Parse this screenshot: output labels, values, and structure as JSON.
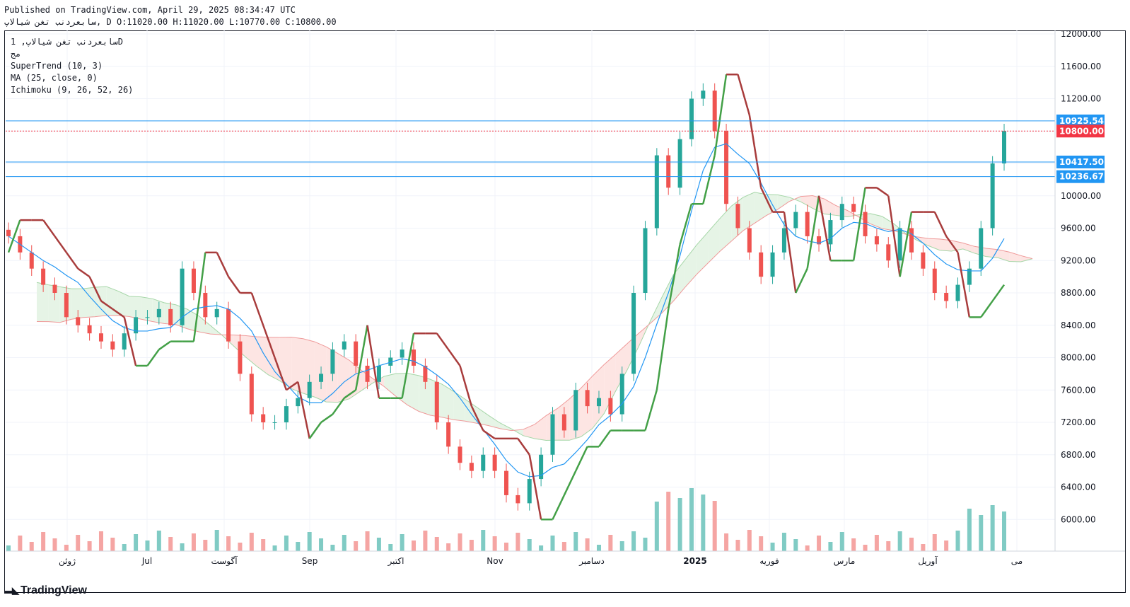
{
  "header": {
    "published_line": "Published on TradingView.com, April 29, 2025 08:34:47 UTC",
    "symbol_name": "سابعردنب تغن شیالاپ",
    "ohlc_text": "D O:11020.00 H:11020.00 L:10770.00 C:10800.00"
  },
  "legend": {
    "line1": "سابعردنب تغن شیالاپ, 1D",
    "line2": "مج",
    "indicators": [
      "SuperTrend (10, 3)",
      "MA (25, close, 0)",
      "Ichimoku (9, 26, 52, 26)"
    ]
  },
  "brand": {
    "name": "TradingView"
  },
  "colors": {
    "up": "#26a69a",
    "down": "#ef5350",
    "ma": "#2196f3",
    "supertrend_up": "#43a047",
    "supertrend_down": "#a83c3c",
    "hline": "#2196f3",
    "price": "#f23645",
    "cloud_green": "#e6f4e6",
    "cloud_red": "#fde5e3"
  },
  "chart_data": {
    "type": "line",
    "title": "",
    "y_axis": {
      "ticks": [
        12000,
        11600,
        11200,
        10800,
        10400,
        10000,
        9600,
        9200,
        8800,
        8400,
        8000,
        7600,
        7200,
        6800,
        6400,
        6000
      ],
      "range": [
        5600,
        12000
      ]
    },
    "x_axis": {
      "labels": [
        "ژوئن",
        "Jul",
        "آگوست",
        "Sep",
        "اکتبر",
        "Nov",
        "دسامبر",
        "2025",
        "فوریه",
        "مارس",
        "آوریل",
        "می"
      ]
    },
    "horizontal_levels": [
      {
        "value": 10925.54,
        "label": "10925.54"
      },
      {
        "value": 10417.5,
        "label": "10417.50"
      },
      {
        "value": 10236.67,
        "label": "10236.67"
      }
    ],
    "last_price": {
      "value": 10800.0,
      "label": "10800.00"
    },
    "close_approx": [
      9500,
      9300,
      9100,
      8900,
      8800,
      8500,
      8400,
      8300,
      8200,
      8100,
      8300,
      8500,
      8500,
      8600,
      8400,
      9100,
      8800,
      8500,
      8600,
      8200,
      7800,
      7300,
      7200,
      7200,
      7400,
      7500,
      7700,
      7800,
      8100,
      8200,
      7900,
      7700,
      7900,
      8000,
      8100,
      7900,
      7700,
      7200,
      6900,
      6700,
      6600,
      6800,
      6600,
      6300,
      6200,
      6500,
      6800,
      7300,
      7100,
      7600,
      7400,
      7500,
      7300,
      7800,
      8800,
      9600,
      10500,
      10100,
      10700,
      11200,
      11300,
      10800,
      9900,
      9600,
      9300,
      9000,
      9300,
      9600,
      9800,
      9500,
      9400,
      9700,
      9900,
      9800,
      9500,
      9400,
      9200,
      9600,
      9300,
      9100,
      8800,
      8700,
      8900,
      9100,
      9600,
      10400,
      10800
    ]
  }
}
